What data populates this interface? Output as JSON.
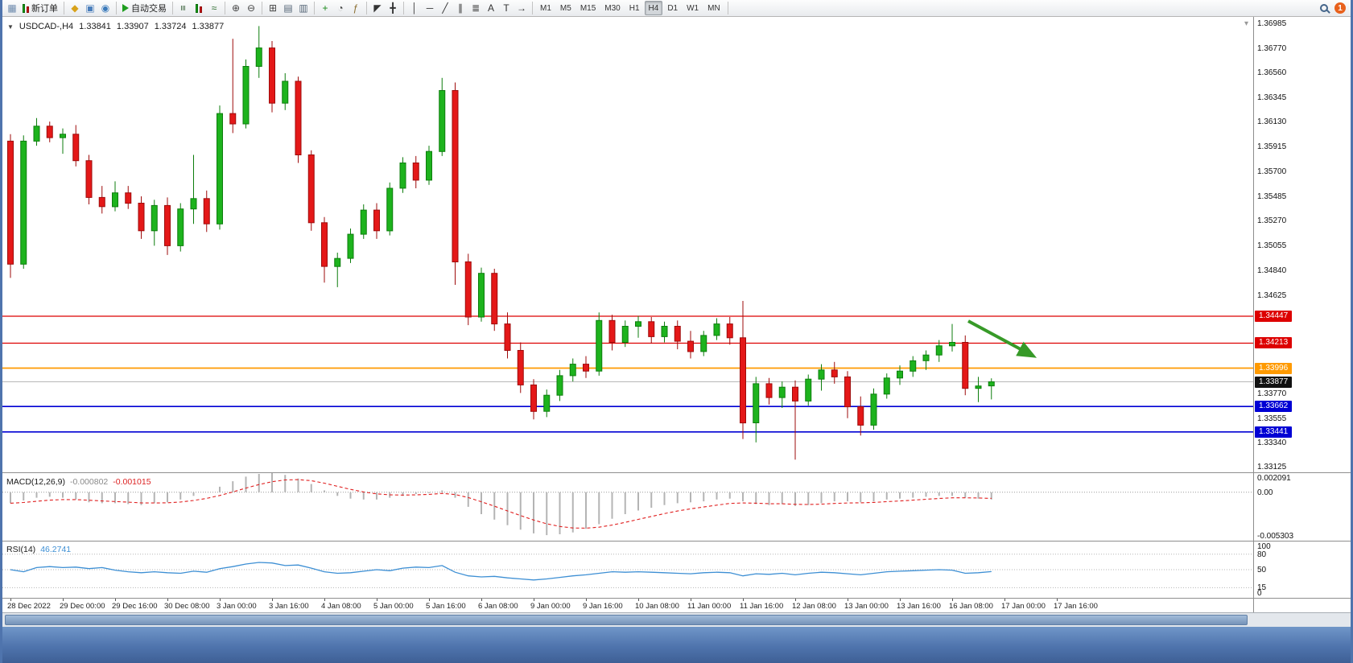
{
  "toolbar": {
    "groups": [
      {
        "items": [
          {
            "name": "chart-window-icon",
            "glyph": "▦",
            "color": "#6f8cae"
          },
          {
            "name": "new-order-button",
            "icon": "candles",
            "label": "新订单"
          }
        ]
      },
      {
        "items": [
          {
            "name": "signals-icon",
            "glyph": "◆",
            "color": "#d8a21a"
          },
          {
            "name": "market-icon",
            "glyph": "▣",
            "color": "#4a7ebb"
          },
          {
            "name": "community-icon",
            "glyph": "◉",
            "color": "#3a7abb"
          }
        ]
      },
      {
        "items": [
          {
            "name": "auto-trading-button",
            "icon": "play",
            "label": "自动交易"
          }
        ]
      },
      {
        "items": [
          {
            "name": "bar-chart-icon",
            "glyph": "≡",
            "rot": true,
            "color": "#355e35"
          },
          {
            "name": "candlestick-chart-icon",
            "icon": "candles"
          },
          {
            "name": "line-chart-icon",
            "glyph": "≈",
            "color": "#2e6e2e"
          }
        ]
      },
      {
        "items": [
          {
            "name": "zoom-in-icon",
            "glyph": "⊕",
            "color": "#444444"
          },
          {
            "name": "zoom-out-icon",
            "glyph": "⊖",
            "color": "#444444"
          }
        ]
      },
      {
        "items": [
          {
            "name": "grid-icon",
            "glyph": "⊞",
            "color": "#444444"
          },
          {
            "name": "tile-windows-icon",
            "glyph": "▤",
            "color": "#556677"
          },
          {
            "name": "cascade-windows-icon",
            "glyph": "▥",
            "color": "#556677"
          }
        ]
      },
      {
        "items": [
          {
            "name": "new-chart-icon",
            "glyph": "+",
            "color": "#1a8a1a"
          },
          {
            "name": "profiles-icon",
            "glyph": "◔",
            "color": "#444444"
          },
          {
            "name": "indicators-icon",
            "glyph": "ƒ",
            "color": "#8a6d2f"
          }
        ]
      },
      {
        "items": [
          {
            "name": "cursor-icon",
            "glyph": "◤",
            "color": "#333333"
          },
          {
            "name": "crosshair-icon",
            "glyph": "╋",
            "color": "#333333"
          }
        ]
      },
      {
        "items": [
          {
            "name": "vertical-line-icon",
            "glyph": "│",
            "color": "#333333"
          },
          {
            "name": "horizontal-line-icon",
            "glyph": "─",
            "color": "#333333"
          },
          {
            "name": "trendline-icon",
            "glyph": "╱",
            "color": "#333333"
          },
          {
            "name": "channel-icon",
            "glyph": "∥",
            "color": "#333333"
          },
          {
            "name": "fibonacci-icon",
            "glyph": "≣",
            "color": "#333333"
          },
          {
            "name": "text-icon",
            "glyph": "A",
            "color": "#333333"
          },
          {
            "name": "label-icon",
            "glyph": "T",
            "color": "#333333"
          },
          {
            "name": "shapes-icon",
            "glyph": "→",
            "color": "#333333"
          }
        ]
      },
      {
        "items": [
          {
            "name": "tf-M1",
            "tf": "M1"
          },
          {
            "name": "tf-M5",
            "tf": "M5"
          },
          {
            "name": "tf-M15",
            "tf": "M15"
          },
          {
            "name": "tf-M30",
            "tf": "M30"
          },
          {
            "name": "tf-H1",
            "tf": "H1"
          },
          {
            "name": "tf-H4",
            "tf": "H4"
          },
          {
            "name": "tf-D1",
            "tf": "D1"
          },
          {
            "name": "tf-W1",
            "tf": "W1"
          },
          {
            "name": "tf-MN",
            "tf": "MN"
          }
        ]
      },
      {
        "items": [
          {
            "name": "toolbar-spacer",
            "spacer": true
          },
          {
            "name": "search-icon",
            "icon": "mag"
          },
          {
            "name": "notification-badge",
            "badge": "1"
          }
        ]
      }
    ],
    "active_timeframe": "H4"
  },
  "chart": {
    "header": {
      "expander": "▼",
      "title": "USDCAD-,H4",
      "open": "1.33841",
      "high": "1.33907",
      "low": "1.33724",
      "close": "1.33877"
    },
    "corner_marker": "▾",
    "price_axis_ticks": [
      "1.36985",
      "1.36770",
      "1.36560",
      "1.36345",
      "1.36130",
      "1.35915",
      "1.35700",
      "1.35485",
      "1.35270",
      "1.35055",
      "1.34840",
      "1.34625",
      "1.34410",
      "1.33770",
      "1.33555",
      "1.33340",
      "1.33125"
    ],
    "levels": [
      {
        "label": "1.34447",
        "price": 1.34447,
        "line": "#dd0000",
        "badge": "#dd0000",
        "width": 1.2
      },
      {
        "label": "1.34213",
        "price": 1.34213,
        "line": "#dd0000",
        "badge": "#dd0000",
        "width": 1.2
      },
      {
        "label": "1.33996",
        "price": 1.33996,
        "line": "#ff9a00",
        "badge": "#ff9a00",
        "width": 1.8
      },
      {
        "label": "1.33877",
        "price": 1.33877,
        "line": "#b8b8b8",
        "badge": "#111111",
        "width": 1
      },
      {
        "label": "1.33662",
        "price": 1.33662,
        "line": "#0000d4",
        "badge": "#0000d4",
        "width": 1.6
      },
      {
        "label": "1.33441",
        "price": 1.33441,
        "line": "#0000d4",
        "badge": "#0000d4",
        "width": 1.6
      }
    ],
    "arrow": {
      "color": "#379a28",
      "from": [
        1200,
        378
      ],
      "to": [
        1278,
        420
      ],
      "width": 4
    },
    "time_labels": [
      "28 Dec 2022",
      "29 Dec 00:00",
      "29 Dec 16:00",
      "30 Dec 08:00",
      "3 Jan 00:00",
      "3 Jan 16:00",
      "4 Jan 08:00",
      "5 Jan 00:00",
      "5 Jan 16:00",
      "6 Jan 08:00",
      "9 Jan 00:00",
      "9 Jan 16:00",
      "10 Jan 08:00",
      "11 Jan 00:00",
      "11 Jan 16:00",
      "12 Jan 08:00",
      "13 Jan 00:00",
      "13 Jan 16:00",
      "16 Jan 08:00",
      "17 Jan 00:00",
      "17 Jan 16:00"
    ]
  },
  "macd": {
    "name": "MACD(12,26,9)",
    "value1": "-0.000802",
    "value2": "-0.001015",
    "range": [
      -0.005303,
      0.002091
    ],
    "axis": [
      {
        "label": "0.002091",
        "v": 0.002091
      },
      {
        "label": "0.00",
        "v": 0
      },
      {
        "label": "-0.005303",
        "v": -0.005303
      }
    ],
    "histogram_color": "#b4b4b4",
    "signal_color": "#e02020"
  },
  "rsi": {
    "name": "RSI(14)",
    "value": "46.2741",
    "levels": [
      80,
      50,
      15
    ],
    "line_color": "#3d8fd4",
    "axis": [
      {
        "label": "100",
        "v": 100
      },
      {
        "label": "80",
        "v": 80
      },
      {
        "label": "50",
        "v": 50
      },
      {
        "label": "15",
        "v": 15
      },
      {
        "label": "0",
        "v": 0
      }
    ]
  },
  "chart_data": {
    "type": "candlestick",
    "symbol": "USDCAD",
    "timeframe": "H4",
    "title": "USDCAD-,H4",
    "y_range": [
      1.3309,
      1.3705
    ],
    "up_color": "#1db31d",
    "down_color": "#e41818",
    "up_stroke": "#0d7d0d",
    "down_stroke": "#9e0b0b",
    "candles": [
      [
        1.3597,
        1.3603,
        1.3478,
        1.349
      ],
      [
        1.349,
        1.3602,
        1.3486,
        1.3597
      ],
      [
        1.3597,
        1.3617,
        1.3593,
        1.361
      ],
      [
        1.361,
        1.3614,
        1.3596,
        1.36
      ],
      [
        1.36,
        1.3608,
        1.3586,
        1.3603
      ],
      [
        1.3603,
        1.3611,
        1.3575,
        1.358
      ],
      [
        1.358,
        1.3585,
        1.3542,
        1.3548
      ],
      [
        1.3548,
        1.3558,
        1.3534,
        1.354
      ],
      [
        1.354,
        1.3562,
        1.3536,
        1.3552
      ],
      [
        1.3552,
        1.3558,
        1.3538,
        1.3543
      ],
      [
        1.3543,
        1.3549,
        1.3512,
        1.3519
      ],
      [
        1.3519,
        1.3546,
        1.3506,
        1.3541
      ],
      [
        1.3541,
        1.3548,
        1.3498,
        1.3506
      ],
      [
        1.3506,
        1.3543,
        1.3501,
        1.3538
      ],
      [
        1.3538,
        1.3585,
        1.3525,
        1.3547
      ],
      [
        1.3547,
        1.3554,
        1.3518,
        1.3525
      ],
      [
        1.3525,
        1.3628,
        1.352,
        1.3621
      ],
      [
        1.3621,
        1.3686,
        1.3604,
        1.3612
      ],
      [
        1.3612,
        1.3668,
        1.3608,
        1.3662
      ],
      [
        1.3662,
        1.3697,
        1.3652,
        1.3678
      ],
      [
        1.3678,
        1.3684,
        1.3622,
        1.363
      ],
      [
        1.363,
        1.3656,
        1.3624,
        1.3649
      ],
      [
        1.3649,
        1.3653,
        1.3578,
        1.3585
      ],
      [
        1.3585,
        1.3589,
        1.3519,
        1.3526
      ],
      [
        1.3526,
        1.3531,
        1.3474,
        1.3488
      ],
      [
        1.3488,
        1.35,
        1.347,
        1.3495
      ],
      [
        1.3495,
        1.3521,
        1.3491,
        1.3516
      ],
      [
        1.3516,
        1.3542,
        1.3512,
        1.3537
      ],
      [
        1.3537,
        1.3543,
        1.3512,
        1.3519
      ],
      [
        1.3519,
        1.3561,
        1.3515,
        1.3556
      ],
      [
        1.3556,
        1.3583,
        1.3552,
        1.3578
      ],
      [
        1.3578,
        1.3584,
        1.3556,
        1.3563
      ],
      [
        1.3563,
        1.3593,
        1.3559,
        1.3588
      ],
      [
        1.3588,
        1.3652,
        1.3584,
        1.3641
      ],
      [
        1.3641,
        1.3648,
        1.3472,
        1.3492
      ],
      [
        1.3492,
        1.3499,
        1.3437,
        1.3444
      ],
      [
        1.3444,
        1.3487,
        1.344,
        1.3482
      ],
      [
        1.3482,
        1.3486,
        1.3432,
        1.3438
      ],
      [
        1.3438,
        1.3448,
        1.3408,
        1.3415
      ],
      [
        1.3415,
        1.3422,
        1.3378,
        1.3385
      ],
      [
        1.3385,
        1.339,
        1.3355,
        1.3362
      ],
      [
        1.3362,
        1.3381,
        1.3357,
        1.3376
      ],
      [
        1.3376,
        1.3398,
        1.3371,
        1.3393
      ],
      [
        1.3393,
        1.3408,
        1.3388,
        1.3403
      ],
      [
        1.3403,
        1.341,
        1.3391,
        1.3397
      ],
      [
        1.3397,
        1.3448,
        1.3393,
        1.3441
      ],
      [
        1.3441,
        1.3446,
        1.3415,
        1.3422
      ],
      [
        1.3422,
        1.3441,
        1.3418,
        1.3436
      ],
      [
        1.3436,
        1.3445,
        1.3426,
        1.344
      ],
      [
        1.344,
        1.3444,
        1.3421,
        1.3427
      ],
      [
        1.3427,
        1.344,
        1.3422,
        1.3436
      ],
      [
        1.3436,
        1.3441,
        1.3416,
        1.3423
      ],
      [
        1.3423,
        1.3432,
        1.3408,
        1.3414
      ],
      [
        1.3414,
        1.3432,
        1.341,
        1.3428
      ],
      [
        1.3428,
        1.3443,
        1.3424,
        1.3438
      ],
      [
        1.3438,
        1.3444,
        1.342,
        1.3426
      ],
      [
        1.3426,
        1.3458,
        1.3338,
        1.3352
      ],
      [
        1.3352,
        1.3392,
        1.3335,
        1.3386
      ],
      [
        1.3386,
        1.3391,
        1.3368,
        1.3374
      ],
      [
        1.3374,
        1.3388,
        1.3365,
        1.3383
      ],
      [
        1.3383,
        1.3389,
        1.332,
        1.3371
      ],
      [
        1.3371,
        1.3394,
        1.3367,
        1.339
      ],
      [
        1.339,
        1.3403,
        1.338,
        1.3398
      ],
      [
        1.3398,
        1.3405,
        1.3386,
        1.3392
      ],
      [
        1.3392,
        1.3397,
        1.3356,
        1.3366
      ],
      [
        1.3366,
        1.3375,
        1.3341,
        1.335
      ],
      [
        1.335,
        1.3382,
        1.3346,
        1.3377
      ],
      [
        1.3377,
        1.3395,
        1.3373,
        1.3391
      ],
      [
        1.3391,
        1.3402,
        1.3385,
        1.3397
      ],
      [
        1.3397,
        1.341,
        1.3392,
        1.3406
      ],
      [
        1.3406,
        1.3415,
        1.3398,
        1.3411
      ],
      [
        1.3411,
        1.3424,
        1.3405,
        1.3419
      ],
      [
        1.3419,
        1.3438,
        1.3414,
        1.3422
      ],
      [
        1.3422,
        1.3428,
        1.3376,
        1.3382
      ],
      [
        1.3382,
        1.3392,
        1.337,
        1.33841
      ],
      [
        1.33841,
        1.33907,
        1.33724,
        1.33877
      ]
    ],
    "macd_histogram": [
      -0.0012,
      -0.0009,
      -0.0006,
      -0.0005,
      -0.0006,
      -0.0008,
      -0.0011,
      -0.0012,
      -0.0012,
      -0.0013,
      -0.0014,
      -0.0012,
      -0.0011,
      -0.0008,
      -0.0004,
      0.0,
      0.0006,
      0.0012,
      0.0017,
      0.002,
      0.0021,
      0.0019,
      0.0015,
      0.0009,
      0.0002,
      -0.0004,
      -0.0007,
      -0.0008,
      -0.0008,
      -0.0006,
      -0.0004,
      -0.0002,
      -0.0001,
      0.0002,
      -0.0006,
      -0.0016,
      -0.0024,
      -0.003,
      -0.0036,
      -0.0041,
      -0.0045,
      -0.0047,
      -0.0046,
      -0.0044,
      -0.004,
      -0.0035,
      -0.0029,
      -0.0024,
      -0.002,
      -0.0017,
      -0.0014,
      -0.0012,
      -0.0011,
      -0.001,
      -0.0008,
      -0.0007,
      -0.001,
      -0.0013,
      -0.0014,
      -0.0013,
      -0.0015,
      -0.0014,
      -0.0012,
      -0.001,
      -0.001,
      -0.0011,
      -0.001,
      -0.0008,
      -0.0007,
      -0.0006,
      -0.0005,
      -0.0004,
      -0.0004,
      -0.0006,
      -0.0007,
      -0.0008
    ],
    "rsi_values": [
      50,
      46,
      54,
      56,
      54,
      55,
      52,
      54,
      49,
      46,
      44,
      46,
      44,
      43,
      47,
      45,
      52,
      56,
      61,
      64,
      63,
      58,
      59,
      53,
      46,
      43,
      44,
      47,
      50,
      48,
      53,
      55,
      54,
      58,
      45,
      38,
      36,
      37,
      34,
      32,
      30,
      32,
      35,
      38,
      40,
      43,
      46,
      45,
      46,
      45,
      44,
      43,
      42,
      44,
      45,
      44,
      38,
      42,
      41,
      43,
      40,
      43,
      45,
      44,
      42,
      40,
      43,
      46,
      47,
      48,
      49,
      50,
      49,
      43,
      44,
      46.27
    ]
  }
}
